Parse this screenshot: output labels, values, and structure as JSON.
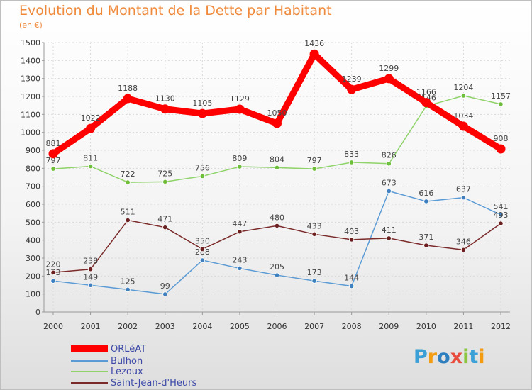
{
  "title": "Evolution du Montant de la Dette par Habitant",
  "subtitle": "(en €)",
  "logo": {
    "text": "Proxiti",
    "colors": [
      "#3aa0d6",
      "#f39c12",
      "#2e7fc0",
      "#e74c3c",
      "#8cc63f",
      "#3aa0d6",
      "#f39c12"
    ]
  },
  "chart_data": {
    "type": "line",
    "x": [
      "2000",
      "2001",
      "2002",
      "2003",
      "2004",
      "2005",
      "2006",
      "2007",
      "2008",
      "2009",
      "2010",
      "2011",
      "2012"
    ],
    "ylim": [
      0,
      1500
    ],
    "yticks": [
      "0",
      "100",
      "200",
      "300",
      "400",
      "500",
      "600",
      "700",
      "800",
      "900",
      "1000",
      "1100",
      "1200",
      "1300",
      "1400",
      "1500"
    ],
    "grid": true,
    "legend_position": "bottom-left",
    "series": [
      {
        "name": "Bulhon",
        "color": "#5b9bd5",
        "marker": "#3d7fbf",
        "values": [
          173,
          149,
          125,
          99,
          288,
          243,
          205,
          173,
          144,
          673,
          616,
          637,
          541
        ],
        "labels": [
          "173",
          "149",
          "125",
          "99",
          "288",
          "243",
          "205",
          "173",
          "144",
          "673",
          "616",
          "637",
          "541"
        ]
      },
      {
        "name": "Lezoux",
        "color": "#8fd36a",
        "marker": "#6fbf3a",
        "values": [
          797,
          811,
          722,
          725,
          756,
          809,
          804,
          797,
          833,
          826,
          1146,
          1204,
          1157
        ],
        "labels": [
          "797",
          "811",
          "722",
          "725",
          "756",
          "809",
          "804",
          "797",
          "833",
          "826",
          "1146",
          "1204",
          "1157"
        ]
      },
      {
        "name": "Saint-Jean-d'Heurs",
        "color": "#7b2a2a",
        "marker": "#6b1f1f",
        "values": [
          220,
          238,
          511,
          471,
          350,
          447,
          480,
          433,
          403,
          411,
          371,
          346,
          493
        ],
        "labels": [
          "220",
          "238",
          "511",
          "471",
          "350",
          "447",
          "480",
          "433",
          "403",
          "411",
          "371",
          "346",
          "493"
        ]
      },
      {
        "name": "ORLéAT",
        "color": "#ff0000",
        "marker": "#ff0000",
        "values": [
          881,
          1022,
          1188,
          1130,
          1105,
          1129,
          1050,
          1436,
          1239,
          1299,
          1166,
          1034,
          908
        ],
        "labels": [
          "881",
          "1022",
          "1188",
          "1130",
          "1105",
          "1129",
          "1050",
          "1436",
          "1239",
          "1299",
          "1166",
          "1034",
          "908"
        ]
      }
    ]
  },
  "legend": [
    {
      "name": "ORLéAT",
      "color": "#ff0000"
    },
    {
      "name": "Bulhon",
      "color": "#5b9bd5"
    },
    {
      "name": "Lezoux",
      "color": "#8fd36a"
    },
    {
      "name": "Saint-Jean-d'Heurs",
      "color": "#7b2a2a"
    }
  ]
}
